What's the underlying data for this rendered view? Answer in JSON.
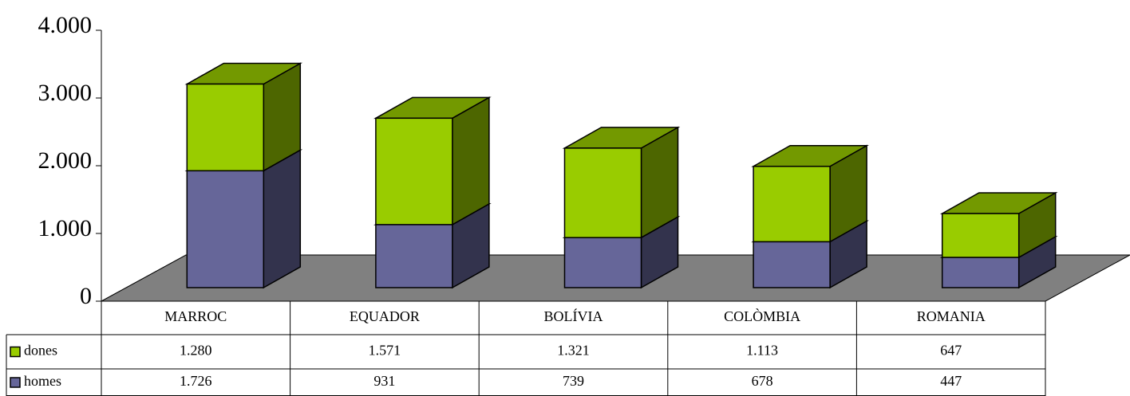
{
  "chart_data": {
    "type": "bar3d_stacked",
    "categories": [
      "MARROC",
      "EQUADOR",
      "BOLÍVIA",
      "COLÒMBIA",
      "ROMANIA"
    ],
    "series": [
      {
        "name": "homes",
        "color": "#666699",
        "values": [
          1726,
          931,
          739,
          678,
          447
        ],
        "value_labels": [
          "1.726",
          "931",
          "739",
          "678",
          "447"
        ]
      },
      {
        "name": "dones",
        "color": "#99cc00",
        "values": [
          1280,
          1571,
          1321,
          1113,
          647
        ],
        "value_labels": [
          "1.280",
          "1.571",
          "1.321",
          "1.113",
          "647"
        ]
      }
    ],
    "ylim": [
      0,
      4000
    ],
    "yticks": [
      0,
      {
        "value": 1000,
        "label": "1.000"
      },
      {
        "value": 2000,
        "label": "2.000"
      },
      {
        "value": 3000,
        "label": "3.000"
      },
      {
        "value": 4000,
        "label": "4.000"
      }
    ]
  }
}
